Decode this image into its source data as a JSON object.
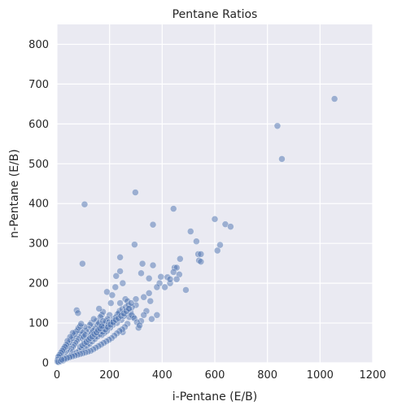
{
  "chart_data": {
    "type": "scatter",
    "title": "Pentane Ratios",
    "xlabel": "i-Pentane (E/B)",
    "ylabel": "n-Pentane (E/B)",
    "xlim": [
      0,
      1200
    ],
    "ylim": [
      0,
      850
    ],
    "xticks": [
      "0",
      "200",
      "400",
      "600",
      "800",
      "1000",
      "1200"
    ],
    "yticks": [
      "0",
      "100",
      "200",
      "300",
      "400",
      "500",
      "600",
      "700",
      "800"
    ],
    "grid": true,
    "background": "#eaeaf2",
    "point_color": "#4c72b0",
    "series": [
      {
        "points": [
          [
            1055,
            663
          ],
          [
            838,
            595
          ],
          [
            855,
            512
          ],
          [
            298,
            428
          ],
          [
            443,
            387
          ],
          [
            105,
            398
          ],
          [
            97,
            249
          ],
          [
            365,
            347
          ],
          [
            600,
            361
          ],
          [
            640,
            348
          ],
          [
            660,
            342
          ],
          [
            620,
            296
          ],
          [
            610,
            282
          ],
          [
            508,
            330
          ],
          [
            530,
            305
          ],
          [
            537,
            273
          ],
          [
            547,
            273
          ],
          [
            540,
            257
          ],
          [
            547,
            254
          ],
          [
            295,
            297
          ],
          [
            240,
            265
          ],
          [
            325,
            249
          ],
          [
            365,
            245
          ],
          [
            468,
            261
          ],
          [
            447,
            239
          ],
          [
            455,
            239
          ],
          [
            443,
            228
          ],
          [
            465,
            222
          ],
          [
            420,
            215
          ],
          [
            395,
            216
          ],
          [
            390,
            200
          ],
          [
            380,
            190
          ],
          [
            410,
            190
          ],
          [
            430,
            200
          ],
          [
            490,
            183
          ],
          [
            455,
            210
          ],
          [
            430,
            210
          ],
          [
            350,
            212
          ],
          [
            320,
            225
          ],
          [
            240,
            230
          ],
          [
            225,
            218
          ],
          [
            190,
            178
          ],
          [
            210,
            170
          ],
          [
            222,
            190
          ],
          [
            250,
            200
          ],
          [
            205,
            150
          ],
          [
            240,
            150
          ],
          [
            270,
            135
          ],
          [
            300,
            145
          ],
          [
            350,
            175
          ],
          [
            355,
            155
          ],
          [
            330,
            165
          ],
          [
            290,
            115
          ],
          [
            340,
            130
          ],
          [
            320,
            105
          ],
          [
            310,
            88
          ],
          [
            250,
            77
          ],
          [
            360,
            110
          ],
          [
            380,
            120
          ],
          [
            330,
            120
          ],
          [
            260,
            160
          ],
          [
            268,
            155
          ],
          [
            300,
            160
          ],
          [
            238,
            130
          ],
          [
            230,
            122
          ],
          [
            260,
            124
          ],
          [
            275,
            115
          ],
          [
            280,
            128
          ],
          [
            245,
            108
          ],
          [
            255,
            118
          ],
          [
            285,
            140
          ],
          [
            200,
            120
          ],
          [
            215,
            110
          ],
          [
            185,
            100
          ],
          [
            170,
            120
          ],
          [
            175,
            128
          ],
          [
            160,
            136
          ],
          [
            165,
            115
          ],
          [
            150,
            105
          ],
          [
            140,
            90
          ],
          [
            130,
            100
          ],
          [
            125,
            95
          ],
          [
            145,
            85
          ],
          [
            120,
            85
          ],
          [
            110,
            80
          ],
          [
            105,
            90
          ],
          [
            100,
            75
          ],
          [
            95,
            70
          ],
          [
            90,
            80
          ],
          [
            85,
            65
          ],
          [
            80,
            60
          ],
          [
            75,
            55
          ],
          [
            70,
            50
          ],
          [
            65,
            45
          ],
          [
            60,
            40
          ],
          [
            55,
            35
          ],
          [
            50,
            30
          ],
          [
            45,
            40
          ],
          [
            40,
            35
          ],
          [
            35,
            30
          ],
          [
            30,
            25
          ],
          [
            25,
            20
          ],
          [
            20,
            15
          ],
          [
            15,
            10
          ],
          [
            10,
            8
          ],
          [
            5,
            5
          ],
          [
            8,
            12
          ],
          [
            12,
            18
          ],
          [
            18,
            22
          ],
          [
            22,
            28
          ],
          [
            28,
            32
          ],
          [
            32,
            38
          ],
          [
            38,
            42
          ],
          [
            42,
            48
          ],
          [
            48,
            52
          ],
          [
            52,
            58
          ],
          [
            58,
            62
          ],
          [
            62,
            68
          ],
          [
            68,
            72
          ],
          [
            72,
            78
          ],
          [
            78,
            82
          ],
          [
            82,
            88
          ],
          [
            88,
            92
          ],
          [
            92,
            98
          ],
          [
            98,
            60
          ],
          [
            102,
            65
          ],
          [
            108,
            70
          ],
          [
            112,
            55
          ],
          [
            118,
            50
          ],
          [
            122,
            60
          ],
          [
            128,
            70
          ],
          [
            132,
            75
          ],
          [
            138,
            80
          ],
          [
            142,
            65
          ],
          [
            148,
            70
          ],
          [
            152,
            78
          ],
          [
            158,
            85
          ],
          [
            162,
            90
          ],
          [
            168,
            95
          ],
          [
            172,
            88
          ],
          [
            178,
            92
          ],
          [
            182,
            98
          ],
          [
            188,
            105
          ],
          [
            192,
            110
          ],
          [
            198,
            102
          ],
          [
            75,
            132
          ],
          [
            80,
            125
          ],
          [
            140,
            110
          ],
          [
            155,
            95
          ],
          [
            160,
            100
          ],
          [
            175,
            105
          ],
          [
            185,
            85
          ],
          [
            195,
            95
          ],
          [
            205,
            100
          ],
          [
            215,
            105
          ],
          [
            225,
            115
          ],
          [
            235,
            125
          ],
          [
            248,
            135
          ],
          [
            262,
            140
          ],
          [
            272,
            145
          ],
          [
            282,
            150
          ],
          [
            228,
            100
          ],
          [
            212,
            95
          ],
          [
            202,
            88
          ],
          [
            190,
            80
          ],
          [
            180,
            75
          ],
          [
            170,
            70
          ],
          [
            60,
            75
          ],
          [
            50,
            65
          ],
          [
            40,
            55
          ],
          [
            35,
            45
          ],
          [
            30,
            40
          ],
          [
            25,
            35
          ],
          [
            20,
            30
          ],
          [
            15,
            25
          ],
          [
            10,
            20
          ],
          [
            5,
            15
          ],
          [
            3,
            8
          ],
          [
            2,
            3
          ],
          [
            6,
            2
          ],
          [
            14,
            4
          ],
          [
            24,
            6
          ],
          [
            34,
            10
          ],
          [
            44,
            14
          ],
          [
            54,
            18
          ],
          [
            64,
            22
          ],
          [
            74,
            26
          ],
          [
            84,
            30
          ],
          [
            94,
            34
          ],
          [
            104,
            38
          ],
          [
            114,
            42
          ],
          [
            124,
            48
          ],
          [
            134,
            54
          ],
          [
            144,
            60
          ],
          [
            154,
            66
          ],
          [
            164,
            72
          ],
          [
            174,
            78
          ],
          [
            184,
            84
          ],
          [
            194,
            90
          ],
          [
            204,
            96
          ],
          [
            214,
            102
          ],
          [
            224,
            108
          ],
          [
            234,
            112
          ],
          [
            244,
            118
          ],
          [
            254,
            124
          ],
          [
            264,
            130
          ],
          [
            274,
            136
          ],
          [
            284,
            120
          ],
          [
            294,
            112
          ],
          [
            304,
            102
          ],
          [
            314,
            94
          ],
          [
            268,
            98
          ],
          [
            258,
            90
          ],
          [
            248,
            84
          ],
          [
            238,
            80
          ],
          [
            228,
            74
          ],
          [
            218,
            68
          ],
          [
            208,
            62
          ],
          [
            198,
            58
          ],
          [
            188,
            54
          ],
          [
            178,
            50
          ],
          [
            168,
            46
          ],
          [
            158,
            42
          ],
          [
            148,
            38
          ],
          [
            138,
            34
          ],
          [
            128,
            30
          ],
          [
            118,
            28
          ],
          [
            108,
            26
          ],
          [
            98,
            24
          ],
          [
            88,
            22
          ],
          [
            78,
            20
          ],
          [
            68,
            18
          ],
          [
            58,
            16
          ],
          [
            48,
            14
          ],
          [
            38,
            12
          ],
          [
            28,
            10
          ],
          [
            18,
            8
          ],
          [
            88,
            40
          ],
          [
            96,
            44
          ],
          [
            104,
            48
          ],
          [
            112,
            52
          ],
          [
            120,
            58
          ],
          [
            126,
            62
          ],
          [
            134,
            66
          ],
          [
            142,
            72
          ],
          [
            150,
            76
          ],
          [
            156,
            82
          ],
          [
            164,
            86
          ],
          [
            170,
            92
          ]
        ]
      }
    ]
  }
}
